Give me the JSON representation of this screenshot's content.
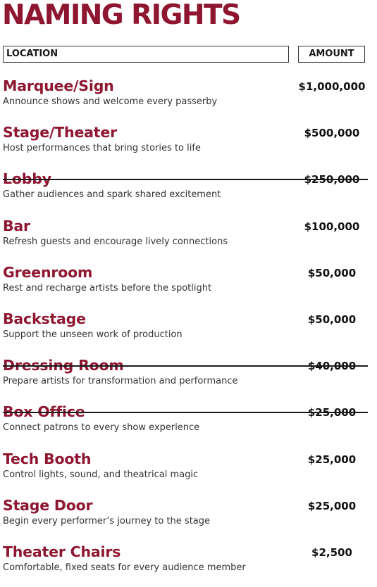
{
  "title": "NAMING RIGHTS",
  "table": {
    "location_header": "LOCATION",
    "amount_header": "AMOUNT",
    "rows": [
      {
        "name": "Marquee/Sign",
        "description": "Announce shows and welcome every passerby",
        "amount": "$1,000,000",
        "struck": false
      },
      {
        "name": "Stage/Theater",
        "description": "Host performances that bring stories to life",
        "amount": "$500,000",
        "struck": false
      },
      {
        "name": "Lobby",
        "description": "Gather audiences and spark shared excitement",
        "amount": "$250,000",
        "struck": true
      },
      {
        "name": "Bar",
        "description": "Refresh guests and encourage lively connections",
        "amount": "$100,000",
        "struck": false
      },
      {
        "name": "Greenroom",
        "description": "Rest and recharge artists before the spotlight",
        "amount": "$50,000",
        "struck": false
      },
      {
        "name": "Backstage",
        "description": "Support the unseen work of production",
        "amount": "$50,000",
        "struck": false
      },
      {
        "name": "Dressing Room",
        "description": "Prepare artists for transformation and performance",
        "amount": "$40,000",
        "struck": true
      },
      {
        "name": "Box Office",
        "description": "Connect patrons to every show experience",
        "amount": "$25,000",
        "struck": true
      },
      {
        "name": "Tech Booth",
        "description": "Control lights, sound, and theatrical magic",
        "amount": "$25,000",
        "struck": false
      },
      {
        "name": "Stage Door",
        "description": "Begin every performer’s journey to the stage",
        "amount": "$25,000",
        "struck": false
      },
      {
        "name": "Theater Chairs",
        "description": "Comfortable, fixed seats for every audience member",
        "amount": "$2,500",
        "struck": false
      }
    ]
  },
  "colors": {
    "accent": "#8e1630",
    "text": "#333333",
    "strike": "#1a1a1a"
  }
}
